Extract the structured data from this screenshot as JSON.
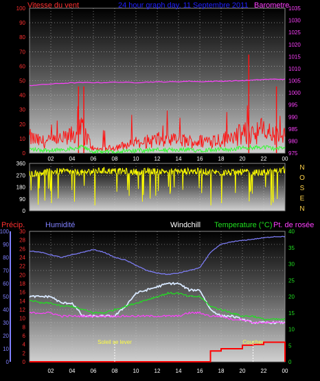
{
  "top_panel": {
    "left_label": "Vitesse du vent",
    "title": "24 hour graph day, 11 Septembre 2011",
    "right_label": "Barometre",
    "wind_axis": {
      "min": 0,
      "max": 100,
      "ticks": [
        0,
        10,
        20,
        30,
        40,
        50,
        60,
        70,
        80,
        90,
        100
      ],
      "color": "#ff3030"
    },
    "pressure_axis": {
      "min": 975,
      "max": 1035,
      "ticks": [
        975,
        980,
        985,
        990,
        995,
        1000,
        1005,
        1010,
        1015,
        1020,
        1025,
        1030,
        1035
      ],
      "color": "#ff40ff"
    }
  },
  "middle_panel": {
    "axis": {
      "min": 0,
      "max": 360,
      "ticks": [
        0,
        90,
        180,
        270,
        360
      ]
    },
    "compass": [
      "N",
      "O",
      "S",
      "E",
      "N"
    ],
    "compass_color": "#ffd24a"
  },
  "bottom_panel": {
    "labels": {
      "precip": "Précip.",
      "humidity": "Humidité",
      "windchill": "Windchill",
      "temperature": "Temperature (°C)",
      "dewpoint": "Pt. de rosée"
    },
    "humidity_axis": {
      "min": 0,
      "max": 100,
      "ticks": [
        0,
        10,
        20,
        30,
        40,
        50,
        60,
        70,
        80,
        90,
        100
      ]
    },
    "precip_axis": {
      "min": 0,
      "max": 30,
      "ticks": [
        0,
        2,
        4,
        6,
        8,
        10,
        12,
        14,
        16,
        18,
        20,
        22,
        24,
        26,
        28,
        30
      ]
    },
    "temp_axis": {
      "min": 0,
      "max": 40,
      "ticks": [
        0,
        5,
        10,
        15,
        20,
        25,
        30,
        35,
        40
      ]
    },
    "sunrise_label": "Soleil se lever",
    "sunset_label": "Coucher",
    "sunrise_hour": 8,
    "sunset_hour": 21
  },
  "x_ticks": [
    "02",
    "04",
    "06",
    "08",
    "10",
    "12",
    "14",
    "16",
    "18",
    "20",
    "22",
    "00"
  ],
  "colors": {
    "wind": "#ff1010",
    "gust_low": "#30ff30",
    "pressure": "#ff40ff",
    "direction": "#ffff00",
    "humidity": "#8080ff",
    "windchill": "#d8e8ff",
    "temperature": "#20e020",
    "dewpoint": "#ff40ff",
    "precip": "#ff0000"
  },
  "chart_data": [
    {
      "type": "line",
      "title": "24 hour graph day, 11 Septembre 2011",
      "x_hours": [
        0,
        1,
        2,
        3,
        4,
        5,
        6,
        7,
        8,
        9,
        10,
        11,
        12,
        13,
        14,
        15,
        16,
        17,
        18,
        19,
        20,
        21,
        22,
        23,
        24
      ],
      "series": [
        {
          "name": "Vitesse du vent",
          "axis": "wind",
          "values": [
            8,
            6,
            6,
            7,
            9,
            12,
            2,
            2,
            3,
            4,
            5,
            6,
            7,
            6,
            7,
            6,
            6,
            7,
            7,
            8,
            10,
            11,
            12,
            9,
            9
          ],
          "peaks": [
            {
              "hour": 4.6,
              "value": 46
            },
            {
              "hour": 5.1,
              "value": 46
            },
            {
              "hour": 20.6,
              "value": 68
            },
            {
              "hour": 23.2,
              "value": 46
            }
          ]
        },
        {
          "name": "Barometre",
          "axis": "pressure",
          "values": [
            1003,
            1003.3,
            1003.6,
            1003.9,
            1004.1,
            1004.2,
            1004.2,
            1004.2,
            1004.4,
            1004.3,
            1004.2,
            1004.4,
            1004.5,
            1004.5,
            1004.6,
            1004.8,
            1004.6,
            1004.7,
            1004.8,
            1004.9,
            1005,
            1005.2,
            1005.5,
            1005.6,
            1005.6
          ]
        }
      ],
      "ylim_wind": [
        0,
        100
      ],
      "ylim_pressure": [
        975,
        1035
      ]
    },
    {
      "type": "line",
      "series": [
        {
          "name": "Direction",
          "values": [
            280,
            290,
            300,
            300,
            295,
            290,
            300,
            305,
            300,
            300,
            295,
            300,
            300,
            300,
            300,
            300,
            300,
            295,
            290,
            290,
            295,
            290,
            290,
            300,
            310
          ]
        }
      ],
      "ylim": [
        0,
        360
      ]
    },
    {
      "type": "line",
      "x_hours": [
        0,
        1,
        2,
        3,
        4,
        5,
        6,
        7,
        8,
        9,
        10,
        11,
        12,
        13,
        14,
        15,
        16,
        17,
        18,
        19,
        20,
        21,
        22,
        23,
        24
      ],
      "series": [
        {
          "name": "Humidité",
          "axis": "humidity",
          "values": [
            85,
            84,
            82,
            80,
            82,
            84,
            86,
            84,
            80,
            78,
            74,
            70,
            68,
            67,
            68,
            70,
            72,
            84,
            90,
            92,
            93,
            94,
            95,
            96,
            96
          ]
        },
        {
          "name": "Windchill",
          "axis": "temp",
          "values": [
            20,
            20,
            20,
            18,
            18,
            14,
            14,
            14,
            14,
            17,
            21,
            22,
            23,
            24,
            24,
            22,
            22,
            16,
            14,
            14,
            13,
            12,
            12,
            12,
            12
          ]
        },
        {
          "name": "Temperature (°C)",
          "axis": "temp",
          "values": [
            19,
            18,
            18,
            17,
            17,
            16,
            15,
            15,
            16,
            17,
            18,
            19,
            20,
            21,
            21,
            20,
            20,
            17,
            16,
            15,
            14,
            14,
            13,
            13,
            13
          ]
        },
        {
          "name": "Pt. de rosée",
          "axis": "temp",
          "values": [
            15,
            15,
            15,
            14,
            14,
            14,
            14,
            14,
            14,
            14,
            14,
            14,
            14,
            14,
            14,
            15,
            15,
            14,
            14,
            13,
            13,
            12,
            12,
            12,
            12
          ]
        },
        {
          "name": "Précip.",
          "axis": "precip",
          "values": [
            0,
            0,
            0,
            0,
            0,
            0,
            0,
            0,
            0,
            0,
            0,
            0,
            0,
            0,
            0,
            0,
            0,
            2.5,
            3,
            3,
            3.8,
            4,
            4.5,
            4.5,
            0
          ]
        }
      ],
      "ylim_humidity": [
        0,
        100
      ],
      "ylim_precip": [
        0,
        30
      ],
      "ylim_temp": [
        0,
        40
      ]
    }
  ]
}
